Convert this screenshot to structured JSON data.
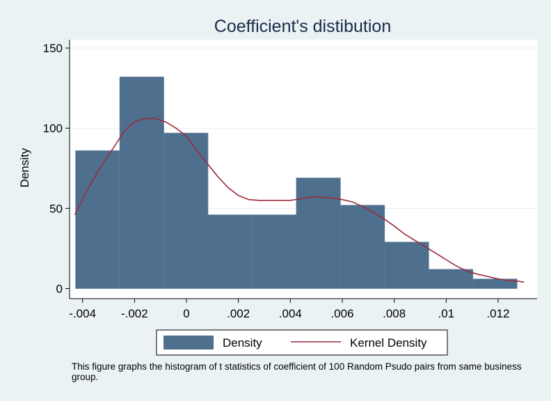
{
  "chart_data": {
    "type": "histogram",
    "title": "Coefficient's distibution",
    "xlabel": "",
    "ylabel": "Density",
    "xlim": [
      -0.0045,
      0.0135
    ],
    "ylim": [
      0,
      155
    ],
    "x_ticks": [
      -0.004,
      -0.002,
      0,
      0.002,
      0.004,
      0.006,
      0.008,
      0.01,
      0.012
    ],
    "x_tick_labels": [
      "-.004",
      "-.002",
      "0",
      ".002",
      ".004",
      ".006",
      ".008",
      ".01",
      ".012"
    ],
    "y_ticks": [
      0,
      50,
      100,
      150
    ],
    "y_tick_labels": [
      "0",
      "50",
      "100",
      "150"
    ],
    "grid": true,
    "legend_position": "bottom",
    "bins": [
      {
        "x0": -0.00427,
        "x1": -0.00257,
        "density": 86
      },
      {
        "x0": -0.00257,
        "x1": -0.00087,
        "density": 132
      },
      {
        "x0": -0.00087,
        "x1": 0.00083,
        "density": 97
      },
      {
        "x0": 0.00083,
        "x1": 0.00253,
        "density": 46
      },
      {
        "x0": 0.00253,
        "x1": 0.00423,
        "density": 46
      },
      {
        "x0": 0.00423,
        "x1": 0.00593,
        "density": 69
      },
      {
        "x0": 0.00593,
        "x1": 0.00763,
        "density": 52
      },
      {
        "x0": 0.00763,
        "x1": 0.00933,
        "density": 29
      },
      {
        "x0": 0.00933,
        "x1": 0.01103,
        "density": 12
      },
      {
        "x0": 0.01103,
        "x1": 0.01273,
        "density": 6
      }
    ],
    "kernel_density": {
      "x": [
        -0.0043,
        -0.0038,
        -0.0033,
        -0.0028,
        -0.0024,
        -0.002,
        -0.0016,
        -0.0012,
        -0.0008,
        -0.0004,
        0,
        0.0004,
        0.0008,
        0.0012,
        0.0016,
        0.002,
        0.0024,
        0.0028,
        0.0032,
        0.0036,
        0.004,
        0.0044,
        0.0048,
        0.0052,
        0.0056,
        0.006,
        0.0064,
        0.0068,
        0.0072,
        0.0076,
        0.008,
        0.0084,
        0.0088,
        0.0092,
        0.0096,
        0.01,
        0.0104,
        0.0108,
        0.0112,
        0.0116,
        0.012,
        0.0124,
        0.0128,
        0.013
      ],
      "y": [
        46,
        62,
        76,
        88,
        98,
        104,
        106,
        106,
        104,
        100,
        95,
        86,
        78,
        70,
        63,
        58,
        55.5,
        55,
        55,
        55,
        55,
        56,
        57,
        57,
        56.5,
        55.5,
        54,
        51,
        47.5,
        43.5,
        39,
        34,
        30,
        26,
        22,
        18,
        14,
        11,
        9,
        7.5,
        6,
        5,
        4.5,
        4
      ]
    },
    "series": [
      {
        "name": "Density",
        "color": "#4f6f8f"
      },
      {
        "name": "Kernel Density",
        "color": "#9a2b3c"
      }
    ]
  },
  "note": "This figure graphs the histogram of t statistics of coefficient of 100 Random Psudo pairs from same business group."
}
